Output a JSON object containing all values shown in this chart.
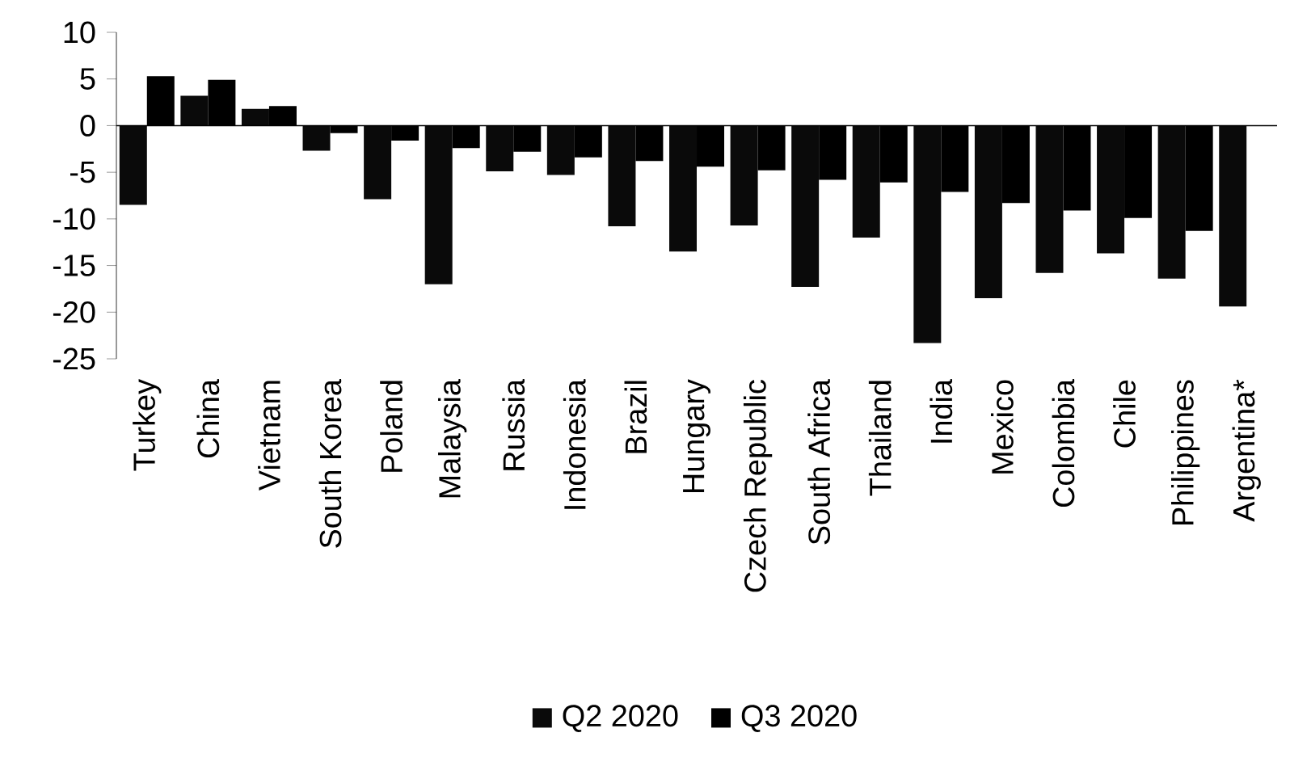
{
  "chart_data": {
    "type": "bar",
    "categories": [
      "Turkey",
      "China",
      "Vietnam",
      "South Korea",
      "Poland",
      "Malaysia",
      "Russia",
      "Indonesia",
      "Brazil",
      "Hungary",
      "Czech Republic",
      "South Africa",
      "Thailand",
      "India",
      "Mexico",
      "Colombia",
      "Chile",
      "Philippines",
      "Argentina*"
    ],
    "series": [
      {
        "name": "Q2 2020",
        "color": "#0a0a0a",
        "values": [
          -8.5,
          3.2,
          1.8,
          -2.7,
          -7.9,
          -17.0,
          -4.9,
          -5.3,
          -10.8,
          -13.5,
          -10.7,
          -17.3,
          -12.0,
          -23.3,
          -18.5,
          -15.8,
          -13.7,
          -16.4,
          -19.4
        ]
      },
      {
        "name": "Q3 2020",
        "color": "#000000",
        "values": [
          5.3,
          4.9,
          2.1,
          -0.8,
          -1.6,
          -2.4,
          -2.8,
          -3.4,
          -3.8,
          -4.4,
          -4.8,
          -5.8,
          -6.1,
          -7.1,
          -8.3,
          -9.1,
          -9.9,
          -11.3,
          null
        ]
      }
    ],
    "ylim": [
      -25,
      10
    ],
    "yticks": [
      -25,
      -20,
      -15,
      -10,
      -5,
      0,
      5,
      10
    ],
    "legend": "bottom"
  }
}
